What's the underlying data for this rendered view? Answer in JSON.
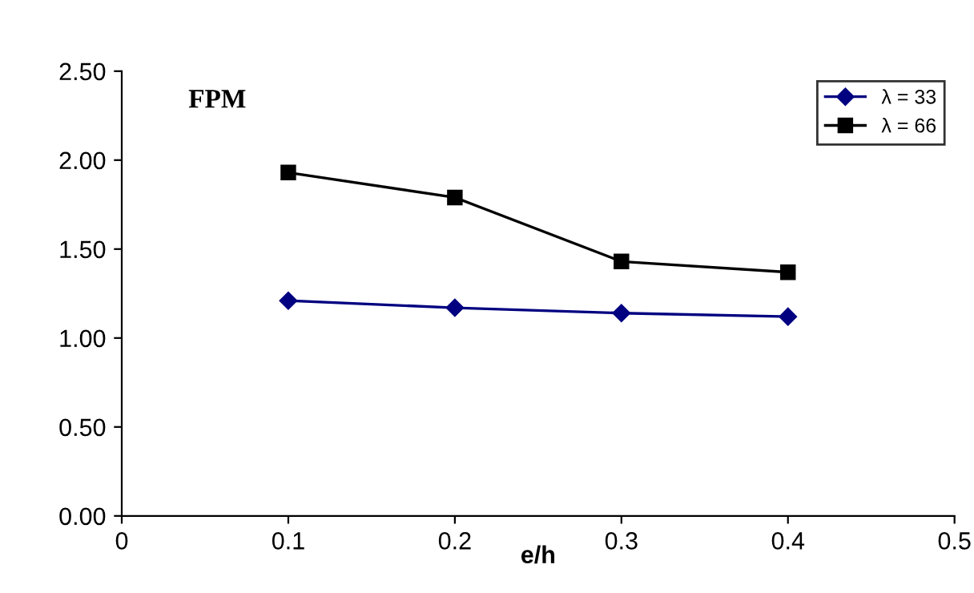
{
  "chart_data": {
    "type": "line",
    "title": "FPM",
    "xlabel": "e/h",
    "x": [
      0.1,
      0.2,
      0.3,
      0.4
    ],
    "series": [
      {
        "name": "λ = 33",
        "color": "#000080",
        "marker": "diamond",
        "values": [
          1.21,
          1.17,
          1.14,
          1.12
        ]
      },
      {
        "name": "λ = 66",
        "color": "#000000",
        "marker": "square",
        "values": [
          1.93,
          1.79,
          1.43,
          1.37
        ]
      }
    ],
    "xlim": [
      0,
      0.5
    ],
    "xticks": [
      0,
      0.1,
      0.2,
      0.3,
      0.4,
      0.5
    ],
    "ylim": [
      0,
      2.5
    ],
    "yticks": [
      {
        "value": 0,
        "label": "0.00"
      },
      {
        "value": 0.5,
        "label": "0.50"
      },
      {
        "value": 1,
        "label": "1.00"
      },
      {
        "value": 1.5,
        "label": "1.50"
      },
      {
        "value": 2,
        "label": "2.00"
      },
      {
        "value": 2.5,
        "label": "2.50"
      }
    ],
    "grid": false,
    "legend": "top right",
    "line_style": "solid"
  }
}
